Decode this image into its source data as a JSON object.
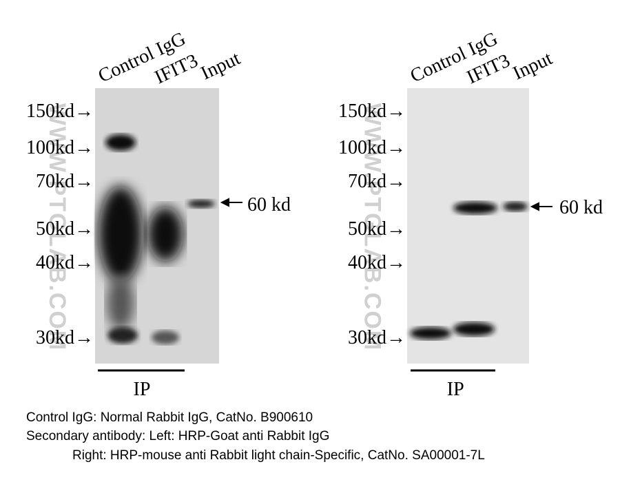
{
  "panels": [
    {
      "lanes": [
        "Control IgG",
        "IFIT3",
        "Input"
      ],
      "markers": [
        "150kd→",
        "100kd→",
        "70kd→",
        "50kd→",
        "40kd→",
        "30kd→"
      ],
      "band_label": "60 kd",
      "group_label": "IP"
    },
    {
      "lanes": [
        "Control IgG",
        "IFIT3",
        "Input"
      ],
      "markers": [
        "150kd→",
        "100kd→",
        "70kd→",
        "50kd→",
        "40kd→",
        "30kd→"
      ],
      "band_label": "60 kd",
      "group_label": "IP"
    }
  ],
  "watermark": "WWW.PTGLAB.COM",
  "caption": [
    "Control IgG: Normal Rabbit IgG, CatNo. B900610",
    "Secondary antibody: Left: HRP-Goat anti Rabbit IgG",
    "Right: HRP-mouse anti Rabbit light chain-Specific, CatNo. SA00001-7L"
  ]
}
